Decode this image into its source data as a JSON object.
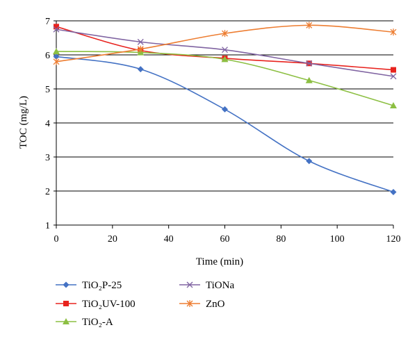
{
  "chart_data": {
    "type": "line",
    "xlabel": "Time (min)",
    "ylabel": "TOC (mg/L)",
    "xlim": [
      0,
      120
    ],
    "ylim": [
      1,
      7
    ],
    "xticks": [
      0,
      20,
      40,
      60,
      80,
      100,
      120
    ],
    "yticks": [
      1,
      2,
      3,
      4,
      5,
      6,
      7
    ],
    "grid": "horizontal",
    "legend_position": "bottom",
    "x": [
      0,
      30,
      60,
      90,
      120
    ],
    "series": [
      {
        "name": "TiO₂P-25",
        "color": "#4472C4",
        "marker": "diamond",
        "values": [
          5.95,
          5.58,
          4.4,
          2.88,
          1.97
        ]
      },
      {
        "name": "TiO₂UV-100",
        "color": "#E8231E",
        "marker": "square",
        "values": [
          6.83,
          6.13,
          5.9,
          5.75,
          5.56
        ]
      },
      {
        "name": "TiO₂-A",
        "color": "#8CBF42",
        "marker": "triangle",
        "values": [
          6.1,
          6.07,
          5.87,
          5.25,
          4.51
        ]
      },
      {
        "name": "TiONa",
        "color": "#8064A2",
        "marker": "x",
        "values": [
          6.75,
          6.38,
          6.15,
          5.75,
          5.37
        ]
      },
      {
        "name": "ZnO",
        "color": "#ED7D31",
        "marker": "star",
        "values": [
          5.8,
          6.17,
          6.63,
          6.87,
          6.67
        ]
      }
    ]
  }
}
